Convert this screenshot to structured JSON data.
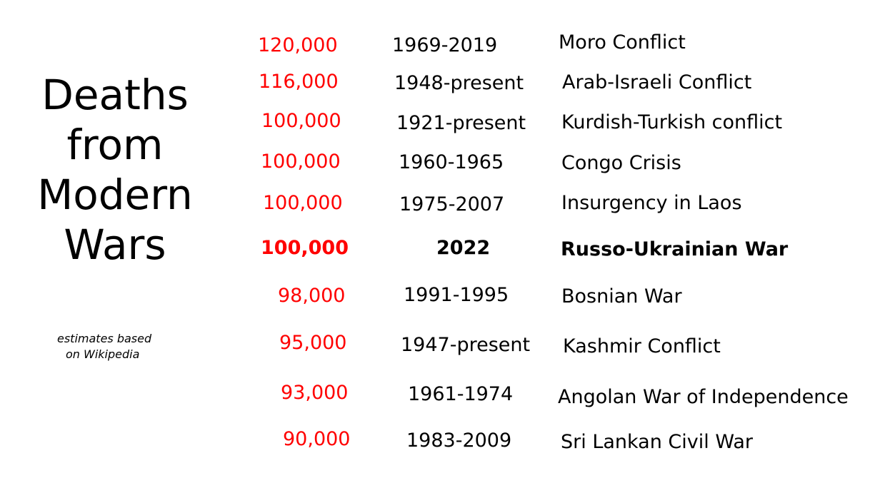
{
  "title": {
    "line1": "Deaths",
    "line2": "from",
    "line3": "Modern",
    "line4": "Wars"
  },
  "note": {
    "line1": "estimates based",
    "line2": "on Wikipedia"
  },
  "accent_color": "#ff0000",
  "rows": [
    {
      "deaths": "120,000",
      "years": "1969-2019",
      "conflict": "Moro Conflict"
    },
    {
      "deaths": "116,000",
      "years": "1948-present",
      "conflict": "Arab-Israeli Conflict"
    },
    {
      "deaths": "100,000",
      "years": "1921-present",
      "conflict": "Kurdish-Turkish conflict"
    },
    {
      "deaths": "100,000",
      "years": "1960-1965",
      "conflict": "Congo Crisis"
    },
    {
      "deaths": "100,000",
      "years": "1975-2007",
      "conflict": "Insurgency in Laos"
    },
    {
      "deaths": "100,000",
      "years": "2022",
      "conflict": "Russo-Ukrainian War"
    },
    {
      "deaths": "98,000",
      "years": "1991-1995",
      "conflict": "Bosnian War"
    },
    {
      "deaths": "95,000",
      "years": "1947-present",
      "conflict": "Kashmir Conflict"
    },
    {
      "deaths": "93,000",
      "years": "1961-1974",
      "conflict": "Angolan War of Independence"
    },
    {
      "deaths": "90,000",
      "years": "1983-2009",
      "conflict": "Sri Lankan Civil War"
    }
  ]
}
